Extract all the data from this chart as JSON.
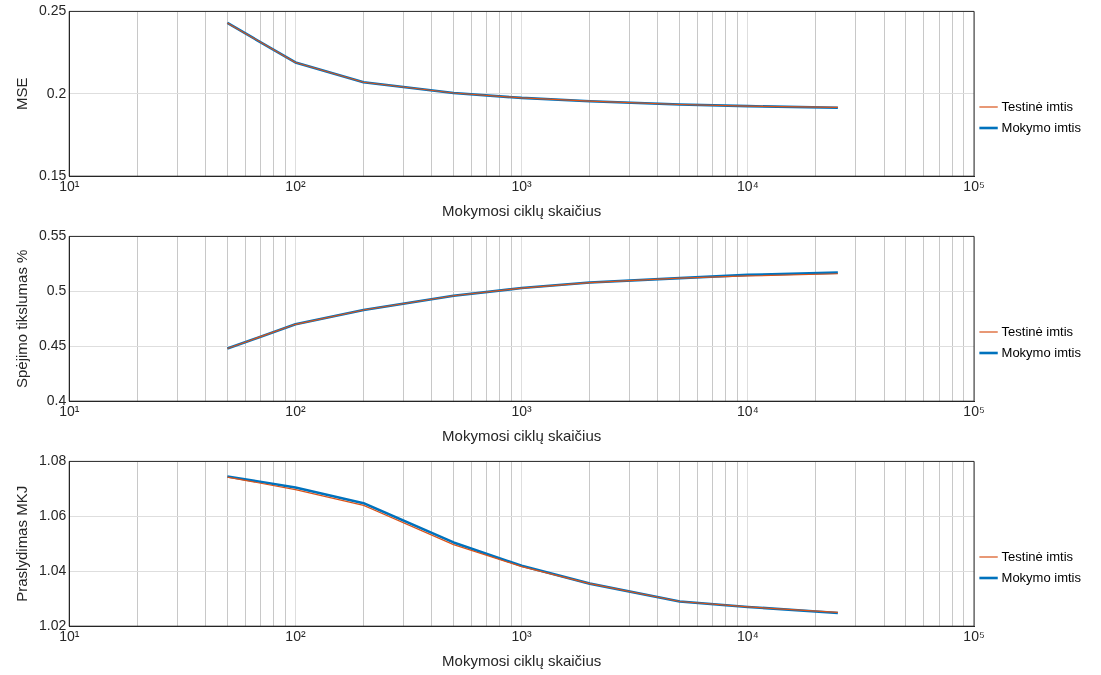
{
  "chart_data": [
    {
      "type": "line",
      "xlabel": "Mokymosi ciklų skaičius",
      "ylabel": "MSE",
      "log": "x",
      "grid": true,
      "legend": "right",
      "line_style": "solid",
      "marker": "none",
      "xlim": [
        10,
        100000
      ],
      "xticks": [
        {
          "value": 10,
          "label": "10¹"
        },
        {
          "value": 20,
          "label": null
        },
        {
          "value": 30,
          "label": null
        },
        {
          "value": 40,
          "label": null
        },
        {
          "value": 50,
          "label": null
        },
        {
          "value": 60,
          "label": null
        },
        {
          "value": 70,
          "label": null
        },
        {
          "value": 80,
          "label": null
        },
        {
          "value": 90,
          "label": null
        },
        {
          "value": 100,
          "label": "10²"
        },
        {
          "value": 200,
          "label": null
        },
        {
          "value": 300,
          "label": null
        },
        {
          "value": 400,
          "label": null
        },
        {
          "value": 500,
          "label": null
        },
        {
          "value": 600,
          "label": null
        },
        {
          "value": 700,
          "label": null
        },
        {
          "value": 800,
          "label": null
        },
        {
          "value": 900,
          "label": null
        },
        {
          "value": 1000,
          "label": "10³"
        },
        {
          "value": 2000,
          "label": null
        },
        {
          "value": 3000,
          "label": null
        },
        {
          "value": 4000,
          "label": null
        },
        {
          "value": 5000,
          "label": null
        },
        {
          "value": 6000,
          "label": null
        },
        {
          "value": 7000,
          "label": null
        },
        {
          "value": 8000,
          "label": null
        },
        {
          "value": 9000,
          "label": null
        },
        {
          "value": 10000,
          "label": "10⁴"
        },
        {
          "value": 20000,
          "label": null
        },
        {
          "value": 30000,
          "label": null
        },
        {
          "value": 40000,
          "label": null
        },
        {
          "value": 50000,
          "label": null
        },
        {
          "value": 60000,
          "label": null
        },
        {
          "value": 70000,
          "label": null
        },
        {
          "value": 80000,
          "label": null
        },
        {
          "value": 90000,
          "label": null
        },
        {
          "value": 100000,
          "label": "10⁵"
        }
      ],
      "ylim": [
        0.15,
        0.25
      ],
      "yticks": [
        0.15,
        0.2,
        0.25
      ],
      "x": [
        50,
        100,
        200,
        500,
        1000,
        2000,
        5000,
        10000,
        25000
      ],
      "series": [
        {
          "name": "Mokymo imtis",
          "color": "#0072bd",
          "values": [
            0.243,
            0.219,
            0.207,
            0.2005,
            0.1975,
            0.1955,
            0.1935,
            0.1925,
            0.1915
          ]
        },
        {
          "name": "Testinė imtis",
          "color": "#d95319",
          "values": [
            0.243,
            0.219,
            0.207,
            0.2005,
            0.1975,
            0.1955,
            0.1935,
            0.1925,
            0.1918
          ]
        }
      ]
    },
    {
      "type": "line",
      "xlabel": "Mokymosi ciklų skaičius",
      "ylabel": "Spėjimo tikslumas %",
      "log": "x",
      "grid": true,
      "legend": "right",
      "line_style": "solid",
      "marker": "none",
      "xlim": [
        10,
        100000
      ],
      "xticks": [
        {
          "value": 10,
          "label": "10¹"
        },
        {
          "value": 20,
          "label": null
        },
        {
          "value": 30,
          "label": null
        },
        {
          "value": 40,
          "label": null
        },
        {
          "value": 50,
          "label": null
        },
        {
          "value": 60,
          "label": null
        },
        {
          "value": 70,
          "label": null
        },
        {
          "value": 80,
          "label": null
        },
        {
          "value": 90,
          "label": null
        },
        {
          "value": 100,
          "label": "10²"
        },
        {
          "value": 200,
          "label": null
        },
        {
          "value": 300,
          "label": null
        },
        {
          "value": 400,
          "label": null
        },
        {
          "value": 500,
          "label": null
        },
        {
          "value": 600,
          "label": null
        },
        {
          "value": 700,
          "label": null
        },
        {
          "value": 800,
          "label": null
        },
        {
          "value": 900,
          "label": null
        },
        {
          "value": 1000,
          "label": "10³"
        },
        {
          "value": 2000,
          "label": null
        },
        {
          "value": 3000,
          "label": null
        },
        {
          "value": 4000,
          "label": null
        },
        {
          "value": 5000,
          "label": null
        },
        {
          "value": 6000,
          "label": null
        },
        {
          "value": 7000,
          "label": null
        },
        {
          "value": 8000,
          "label": null
        },
        {
          "value": 9000,
          "label": null
        },
        {
          "value": 10000,
          "label": "10⁴"
        },
        {
          "value": 20000,
          "label": null
        },
        {
          "value": 30000,
          "label": null
        },
        {
          "value": 40000,
          "label": null
        },
        {
          "value": 50000,
          "label": null
        },
        {
          "value": 60000,
          "label": null
        },
        {
          "value": 70000,
          "label": null
        },
        {
          "value": 80000,
          "label": null
        },
        {
          "value": 90000,
          "label": null
        },
        {
          "value": 100000,
          "label": "10⁵"
        }
      ],
      "ylim": [
        0.4,
        0.55
      ],
      "yticks": [
        0.4,
        0.45,
        0.5,
        0.55
      ],
      "x": [
        50,
        100,
        200,
        500,
        1000,
        2000,
        5000,
        10000,
        25000
      ],
      "series": [
        {
          "name": "Mokymo imtis",
          "color": "#0072bd",
          "values": [
            0.448,
            0.47,
            0.483,
            0.496,
            0.503,
            0.508,
            0.512,
            0.515,
            0.517
          ]
        },
        {
          "name": "Testinė imtis",
          "color": "#d95319",
          "values": [
            0.448,
            0.47,
            0.483,
            0.496,
            0.503,
            0.508,
            0.512,
            0.514,
            0.516
          ]
        }
      ]
    },
    {
      "type": "line",
      "xlabel": "Mokymosi ciklų skaičius",
      "ylabel": "Praslydimas MKJ",
      "log": "x",
      "grid": true,
      "legend": "right",
      "line_style": "solid",
      "marker": "none",
      "xlim": [
        10,
        100000
      ],
      "xticks": [
        {
          "value": 10,
          "label": "10¹"
        },
        {
          "value": 20,
          "label": null
        },
        {
          "value": 30,
          "label": null
        },
        {
          "value": 40,
          "label": null
        },
        {
          "value": 50,
          "label": null
        },
        {
          "value": 60,
          "label": null
        },
        {
          "value": 70,
          "label": null
        },
        {
          "value": 80,
          "label": null
        },
        {
          "value": 90,
          "label": null
        },
        {
          "value": 100,
          "label": "10²"
        },
        {
          "value": 200,
          "label": null
        },
        {
          "value": 300,
          "label": null
        },
        {
          "value": 400,
          "label": null
        },
        {
          "value": 500,
          "label": null
        },
        {
          "value": 600,
          "label": null
        },
        {
          "value": 700,
          "label": null
        },
        {
          "value": 800,
          "label": null
        },
        {
          "value": 900,
          "label": null
        },
        {
          "value": 1000,
          "label": "10³"
        },
        {
          "value": 2000,
          "label": null
        },
        {
          "value": 3000,
          "label": null
        },
        {
          "value": 4000,
          "label": null
        },
        {
          "value": 5000,
          "label": null
        },
        {
          "value": 6000,
          "label": null
        },
        {
          "value": 7000,
          "label": null
        },
        {
          "value": 8000,
          "label": null
        },
        {
          "value": 9000,
          "label": null
        },
        {
          "value": 10000,
          "label": "10⁴"
        },
        {
          "value": 20000,
          "label": null
        },
        {
          "value": 30000,
          "label": null
        },
        {
          "value": 40000,
          "label": null
        },
        {
          "value": 50000,
          "label": null
        },
        {
          "value": 60000,
          "label": null
        },
        {
          "value": 70000,
          "label": null
        },
        {
          "value": 80000,
          "label": null
        },
        {
          "value": 90000,
          "label": null
        },
        {
          "value": 100000,
          "label": "10⁵"
        }
      ],
      "ylim": [
        1.02,
        1.08
      ],
      "yticks": [
        1.02,
        1.04,
        1.06,
        1.08
      ],
      "x": [
        50,
        100,
        200,
        500,
        1000,
        2000,
        5000,
        10000,
        25000
      ],
      "series": [
        {
          "name": "Mokymo imtis",
          "color": "#0072bd",
          "values": [
            1.0745,
            1.0705,
            1.0648,
            1.0505,
            1.042,
            1.0355,
            1.029,
            1.027,
            1.0248
          ]
        },
        {
          "name": "Testinė imtis",
          "color": "#d95319",
          "values": [
            1.0743,
            1.0697,
            1.064,
            1.0497,
            1.0417,
            1.0355,
            1.029,
            1.027,
            1.025
          ]
        }
      ]
    }
  ]
}
